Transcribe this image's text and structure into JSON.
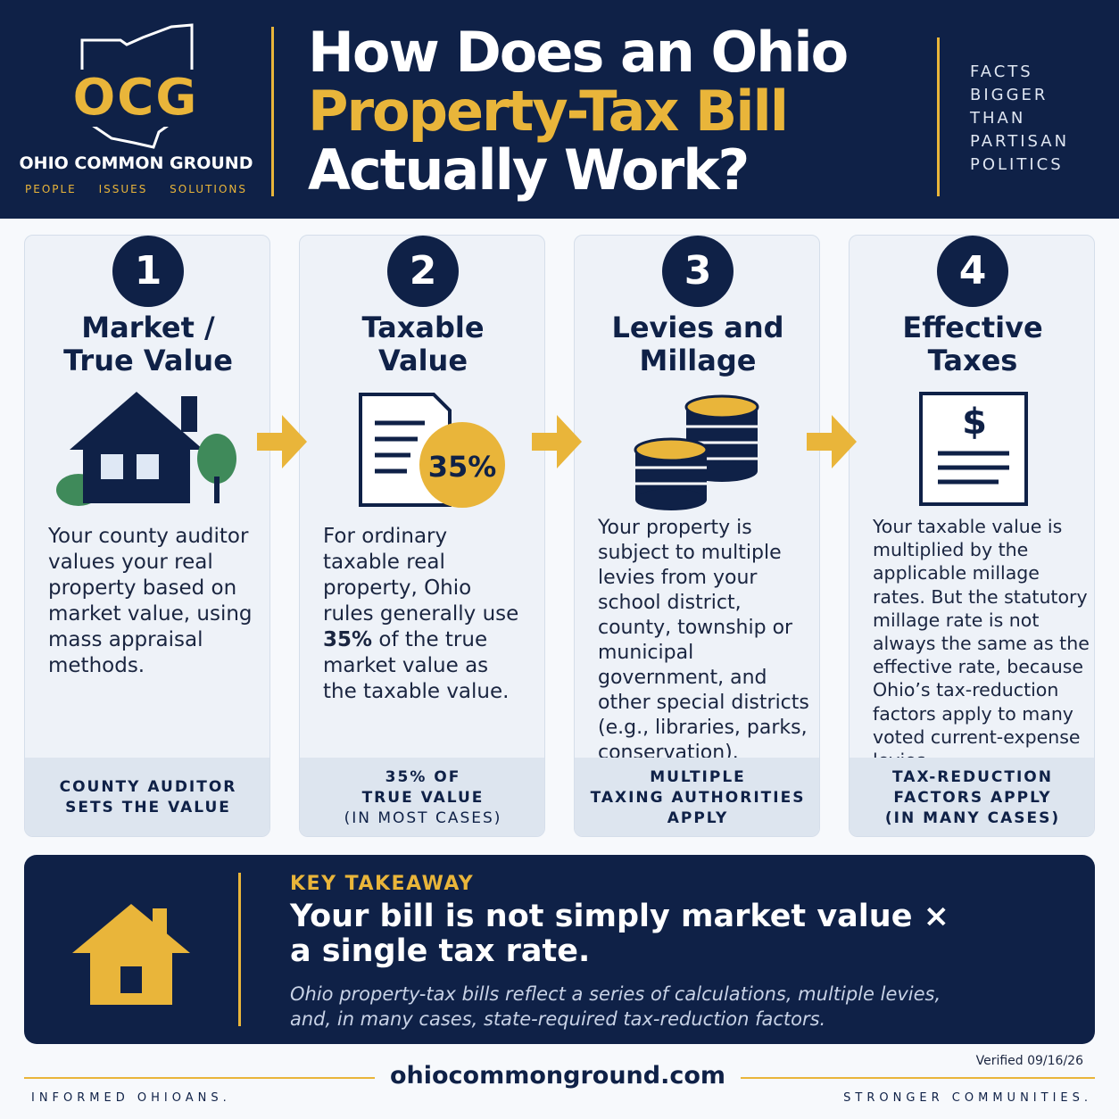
{
  "header": {
    "logo": {
      "mark": "OCG",
      "name": "OHIO COMMON GROUND",
      "pillars": [
        "PEOPLE",
        "ISSUES",
        "SOLUTIONS"
      ]
    },
    "title_lines": [
      "How Does an Ohio",
      "Property-Tax Bill",
      "Actually Work?"
    ],
    "motto_lines": [
      "FACTS",
      "BIGGER",
      "THAN",
      "PARTISAN",
      "POLITICS"
    ]
  },
  "steps": [
    {
      "number": "1",
      "title_lines": [
        "Market /",
        "True Value"
      ],
      "description": "Your county auditor values your real property based on market value, using mass appraisal methods.",
      "footer_lines": [
        "COUNTY AUDITOR",
        "SETS THE VALUE"
      ]
    },
    {
      "number": "2",
      "title_lines": [
        "Taxable",
        "Value"
      ],
      "icon_label": "35%",
      "description": "For ordinary taxable real property, Ohio rules generally use",
      "description_emphasis": "35%",
      "description_rest": "of the true market value as the taxable value.",
      "footer_lines": [
        "35% OF",
        "TRUE VALUE",
        "(IN MOST CASES)"
      ]
    },
    {
      "number": "3",
      "title_lines": [
        "Levies and",
        "Millage"
      ],
      "description": "Your property is subject to multiple levies from your school district, county, township or municipal government, and other special districts (e.g., libraries, parks, conservation).",
      "footer_lines": [
        "MULTIPLE",
        "TAXING AUTHORITIES",
        "APPLY"
      ]
    },
    {
      "number": "4",
      "title_lines": [
        "Effective",
        "Taxes"
      ],
      "icon_label": "$",
      "description": "Your taxable value is multiplied by the applicable millage rates. But the statutory millage rate is not always the same as the effective rate, because Ohio’s tax-reduction factors apply to many voted current-expense levies.",
      "footer_lines": [
        "TAX-REDUCTION",
        "FACTORS APPLY",
        "(IN MANY CASES)"
      ]
    }
  ],
  "takeaway": {
    "label": "KEY TAKEAWAY",
    "headline_lines": [
      "Your bill is not simply market value ×",
      "a single tax rate."
    ],
    "body_lines": [
      "Ohio property-tax bills reflect a series of calculations, multiple levies,",
      "and, in many cases, state-required tax-reduction factors."
    ]
  },
  "footer": {
    "verified": "Verified 09/16/26",
    "website": "ohiocommonground.com",
    "left": "INFORMED OHIOANS.",
    "right": "STRONGER COMMUNITIES."
  }
}
